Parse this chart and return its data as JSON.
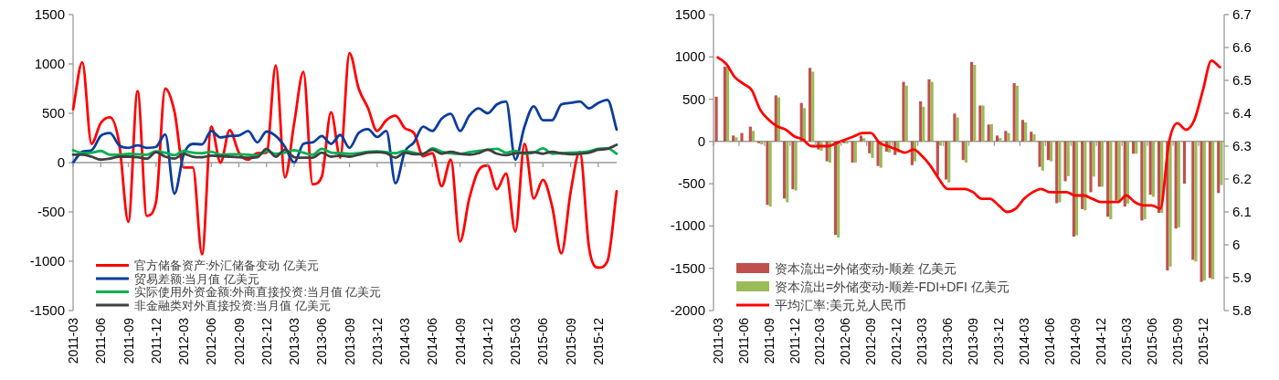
{
  "chart_data": [
    {
      "type": "line",
      "legend": "bottom left",
      "ylim": [
        -1500,
        1500
      ],
      "yticks": [
        -1500,
        -1000,
        -500,
        0,
        500,
        1000,
        1500
      ],
      "categories": [
        "2011-03",
        null,
        null,
        "2011-06",
        null,
        null,
        "2011-09",
        null,
        null,
        "2011-12",
        null,
        null,
        "2012-03",
        null,
        null,
        "2012-06",
        null,
        null,
        "2012-09",
        null,
        null,
        "2012-12",
        null,
        null,
        "2013-03",
        null,
        null,
        "2013-06",
        null,
        null,
        "2013-09",
        null,
        null,
        "2013-12",
        null,
        null,
        "2014-03",
        null,
        null,
        "2014-06",
        null,
        null,
        "2014-09",
        null,
        null,
        "2014-12",
        null,
        null,
        "2015-03",
        null,
        null,
        "2015-06",
        null,
        null,
        "2015-09",
        null,
        null,
        "2015-12",
        null,
        null
      ],
      "series": [
        {
          "name": "官方储备资产:外汇储备变动 亿美元",
          "color": "#ff0000",
          "values": [
            540,
            1018,
            190,
            400,
            460,
            200,
            -600,
            725,
            -540,
            -400,
            750,
            520,
            -50,
            -50,
            -930,
            365,
            0,
            330,
            100,
            30,
            95,
            100,
            985,
            -150,
            400,
            920,
            -220,
            -140,
            510,
            50,
            1110,
            750,
            555,
            320,
            430,
            475,
            350,
            300,
            65,
            95,
            -240,
            30,
            -800,
            -365,
            -80,
            -30,
            -270,
            -110,
            -700,
            190,
            -365,
            -175,
            -445,
            -920,
            -300,
            110,
            -860,
            -1065,
            -1000,
            -290
          ]
        },
        {
          "name": "贸易差额:当月值 亿美元",
          "color": "#0b3d9c",
          "values": [
            0,
            110,
            125,
            270,
            300,
            175,
            150,
            175,
            150,
            160,
            285,
            -315,
            80,
            190,
            185,
            320,
            255,
            270,
            275,
            320,
            205,
            315,
            270,
            160,
            0,
            190,
            205,
            270,
            190,
            280,
            150,
            300,
            340,
            260,
            320,
            -210,
            110,
            205,
            365,
            320,
            445,
            495,
            320,
            475,
            550,
            500,
            590,
            620,
            30,
            365,
            570,
            430,
            430,
            590,
            605,
            620,
            550,
            605,
            635,
            335
          ]
        },
        {
          "name": "实际使用外资金额:外商直接投资:当月值 亿美元",
          "color": "#00b050",
          "values": [
            125,
            95,
            100,
            118,
            80,
            80,
            90,
            85,
            80,
            115,
            100,
            75,
            118,
            100,
            95,
            110,
            80,
            85,
            85,
            80,
            75,
            115,
            90,
            100,
            125,
            100,
            80,
            140,
            100,
            95,
            90,
            95,
            110,
            115,
            105,
            95,
            120,
            100,
            85,
            145,
            110,
            95,
            90,
            105,
            120,
            130,
            140,
            100,
            120,
            90,
            100,
            145,
            90,
            95,
            100,
            105,
            115,
            140,
            145,
            90
          ]
        },
        {
          "name": "非金融类对外直接投资:当月值 亿美元",
          "color": "#404040",
          "values": [
            80,
            80,
            60,
            30,
            40,
            60,
            60,
            55,
            40,
            105,
            60,
            40,
            90,
            60,
            55,
            70,
            65,
            60,
            55,
            50,
            55,
            140,
            60,
            130,
            55,
            50,
            50,
            100,
            60,
            70,
            60,
            80,
            100,
            105,
            95,
            50,
            100,
            85,
            90,
            130,
            90,
            110,
            90,
            80,
            95,
            130,
            90,
            75,
            95,
            100,
            105,
            90,
            110,
            95,
            85,
            90,
            100,
            130,
            140,
            180
          ]
        }
      ]
    },
    {
      "type": "bar",
      "legend": "bottom left",
      "ylim": [
        -2000,
        1500
      ],
      "yticks": [
        -2000,
        -1500,
        -1000,
        -500,
        0,
        500,
        1000,
        1500
      ],
      "y2lim": [
        5.8,
        6.7
      ],
      "y2ticks": [
        5.8,
        5.9,
        6,
        6.1,
        6.2,
        6.3,
        6.4,
        6.5,
        6.6,
        6.7
      ],
      "categories": [
        "2011-03",
        null,
        null,
        "2011-06",
        null,
        null,
        "2011-09",
        null,
        null,
        "2011-12",
        null,
        null,
        "2012-03",
        null,
        null,
        "2012-06",
        null,
        null,
        "2012-09",
        null,
        null,
        "2012-12",
        null,
        null,
        "2013-03",
        null,
        null,
        "2013-06",
        null,
        null,
        "2013-09",
        null,
        null,
        "2013-12",
        null,
        null,
        "2014-03",
        null,
        null,
        "2014-06",
        null,
        null,
        "2014-09",
        null,
        null,
        "2014-12",
        null,
        null,
        "2015-03",
        null,
        null,
        "2015-06",
        null,
        null,
        "2015-09",
        null,
        null,
        "2015-12",
        null,
        null
      ],
      "series": [
        {
          "name": "资本流出=外储变动-顺差 亿美元",
          "color": "#c0504d",
          "values": [
            530,
            885,
            70,
            100,
            175,
            -20,
            -750,
            545,
            -675,
            -565,
            455,
            870,
            -95,
            -235,
            -1105,
            -20,
            -250,
            70,
            -140,
            -290,
            -120,
            -160,
            705,
            -280,
            475,
            735,
            -400,
            -450,
            330,
            -220,
            940,
            425,
            200,
            70,
            125,
            690,
            255,
            115,
            -300,
            -220,
            -730,
            -470,
            -1125,
            -800,
            -600,
            -535,
            -890,
            -700,
            -770,
            -145,
            -935,
            -630,
            -845,
            -1525,
            -1030,
            -500,
            -1400,
            -1660,
            -1615,
            -610
          ]
        },
        {
          "name": "资本流出=外储变动-顺差-FDI+DFI 亿美元",
          "color": "#9bbb59",
          "values": [
            null,
            885,
            50,
            0,
            125,
            -35,
            -770,
            520,
            -720,
            -580,
            395,
            825,
            -110,
            -250,
            -1135,
            -25,
            -250,
            40,
            -195,
            -310,
            -130,
            -130,
            660,
            -235,
            410,
            705,
            -50,
            -485,
            285,
            -250,
            905,
            425,
            205,
            40,
            100,
            660,
            225,
            85,
            -345,
            -235,
            -720,
            -410,
            -1110,
            -815,
            -415,
            -535,
            -920,
            -730,
            -735,
            -145,
            -920,
            -655,
            -845,
            -1480,
            -1015,
            null,
            -1420,
            -1645,
            -1630,
            -515
          ]
        },
        {
          "name": "平均汇率:美元兑人民币",
          "type": "line",
          "axis": "y2",
          "color": "#ff0000",
          "values": [
            6.57,
            6.55,
            6.51,
            6.49,
            6.47,
            6.41,
            6.38,
            6.36,
            6.35,
            6.33,
            6.32,
            6.3,
            6.3,
            6.3,
            6.31,
            6.32,
            6.33,
            6.34,
            6.34,
            6.31,
            6.3,
            6.29,
            6.28,
            6.29,
            6.27,
            6.24,
            6.2,
            6.17,
            6.17,
            6.17,
            6.16,
            6.14,
            6.14,
            6.12,
            6.1,
            6.11,
            6.14,
            6.16,
            6.17,
            6.16,
            6.16,
            6.16,
            6.15,
            6.15,
            6.14,
            6.13,
            6.13,
            6.13,
            6.15,
            6.13,
            6.12,
            6.12,
            6.11,
            6.31,
            6.37,
            6.35,
            6.38,
            6.47,
            6.56,
            6.54
          ]
        }
      ]
    }
  ]
}
